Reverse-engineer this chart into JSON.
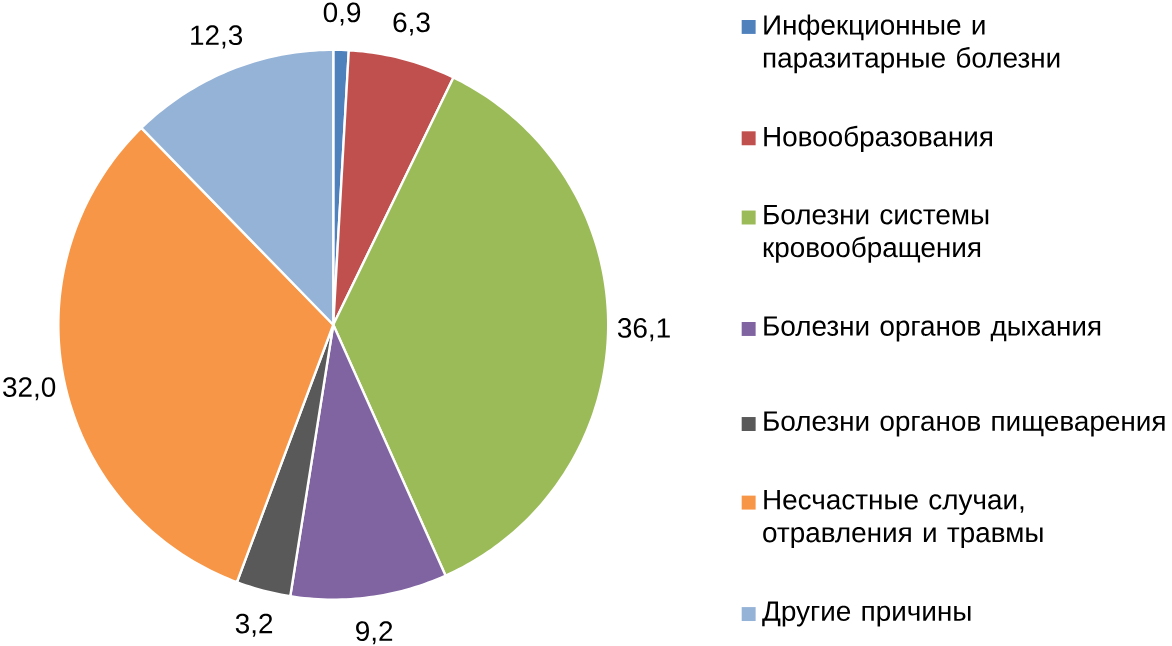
{
  "chart_data": {
    "type": "pie",
    "categories": [
      "Инфекционные и паразитарные болезни",
      "Новообразования",
      "Болезни системы кровообращения",
      "Болезни органов дыхания",
      "Болезни органов пищеварения",
      "Несчастные случаи, отравления и травмы",
      "Другие причины"
    ],
    "values": [
      0.9,
      6.3,
      36.1,
      9.2,
      3.2,
      32.0,
      12.3
    ],
    "value_labels": [
      "0,9",
      "6,3",
      "36,1",
      "9,2",
      "3,2",
      "32,0",
      "12,3"
    ],
    "colors": [
      "#4f81bd",
      "#c0504d",
      "#9bbb59",
      "#8064a2",
      "#595959",
      "#f79646",
      "#95b3d7"
    ],
    "legend": "right"
  }
}
